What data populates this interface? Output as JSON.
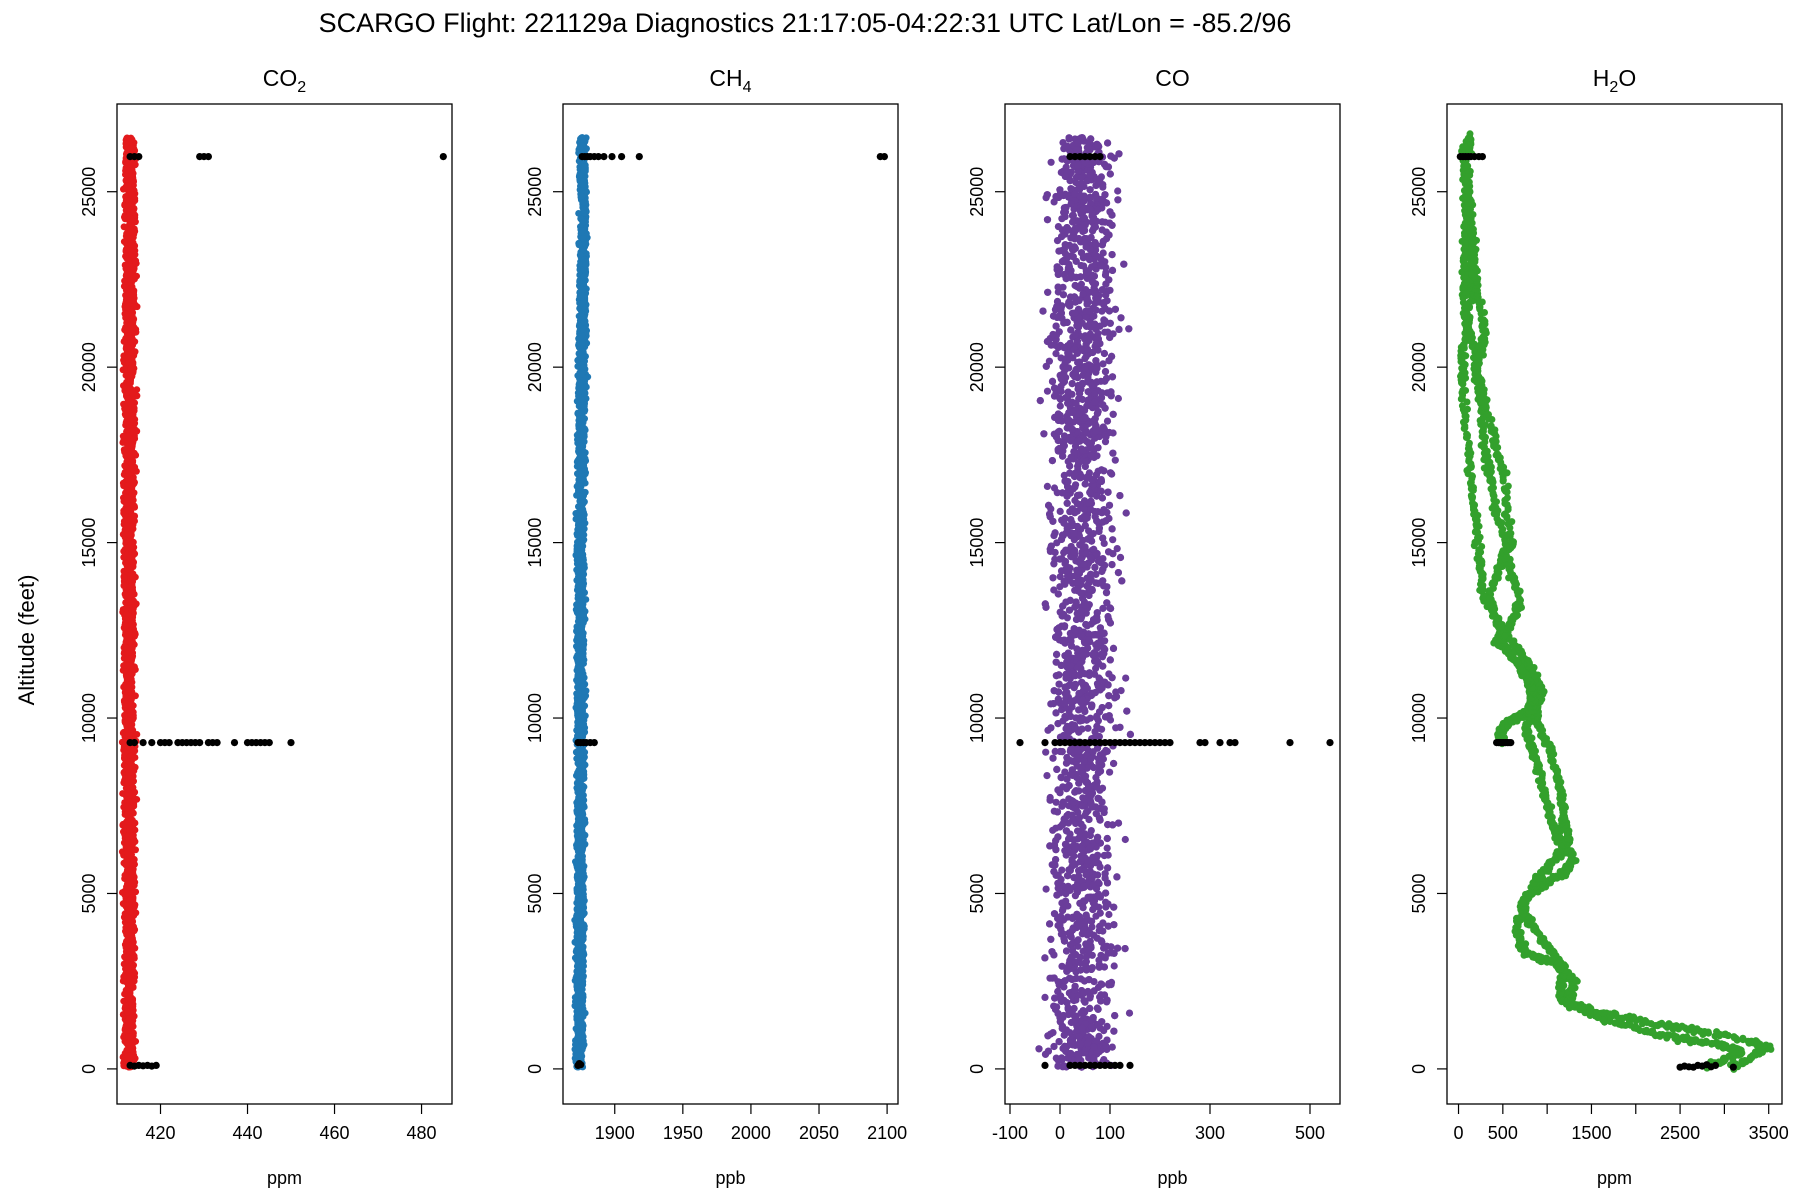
{
  "figure": {
    "title": "SCARGO Flight: 221129a  Diagnostics  21:17:05-04:22:31 UTC  Lat/Lon = -85.2/96",
    "ylabel": "Altitude (feet)",
    "flag_color": "#000000"
  },
  "chart_data": [
    {
      "type": "scatter",
      "title_main": "CO",
      "title_sub": "2",
      "xlabel": "ppm",
      "color": "#e31a1c",
      "xlim": [
        410,
        487
      ],
      "ylim": [
        -1000,
        27500
      ],
      "xticks": [
        420,
        440,
        460,
        480
      ],
      "xtick_labels": [
        "420",
        "440",
        "460",
        "480"
      ],
      "yticks": [
        0,
        5000,
        10000,
        15000,
        20000,
        25000
      ],
      "ytick_labels": [
        "0",
        "5000",
        "10000",
        "15000",
        "20000",
        "25000"
      ],
      "profile": {
        "center": [
          [
            0,
            412.8
          ],
          [
            9000,
            412.8
          ],
          [
            12000,
            412.7
          ],
          [
            20000,
            412.9
          ],
          [
            24000,
            413.1
          ],
          [
            26500,
            412.9
          ]
        ],
        "spread": 0.6
      },
      "flagged": [
        [
          413,
          100
        ],
        [
          414,
          80
        ],
        [
          415,
          100
        ],
        [
          416,
          90
        ],
        [
          417,
          100
        ],
        [
          418,
          80
        ],
        [
          419,
          100
        ],
        [
          413,
          9300
        ],
        [
          414,
          9300
        ],
        [
          416,
          9300
        ],
        [
          418,
          9300
        ],
        [
          420,
          9300
        ],
        [
          421,
          9300
        ],
        [
          422,
          9300
        ],
        [
          424,
          9300
        ],
        [
          425,
          9300
        ],
        [
          426,
          9300
        ],
        [
          427,
          9300
        ],
        [
          428,
          9300
        ],
        [
          429,
          9300
        ],
        [
          431,
          9300
        ],
        [
          432,
          9300
        ],
        [
          433,
          9300
        ],
        [
          437,
          9300
        ],
        [
          440,
          9300
        ],
        [
          441,
          9300
        ],
        [
          442,
          9300
        ],
        [
          443,
          9300
        ],
        [
          444,
          9300
        ],
        [
          445,
          9300
        ],
        [
          450,
          9300
        ],
        [
          413,
          26000
        ],
        [
          414,
          26000
        ],
        [
          415,
          26000
        ],
        [
          429,
          26000
        ],
        [
          430,
          26000
        ],
        [
          431,
          26000
        ],
        [
          485,
          26000
        ]
      ]
    },
    {
      "type": "scatter",
      "title_main": "CH",
      "title_sub": "4",
      "xlabel": "ppb",
      "color": "#1f78b4",
      "xlim": [
        1862,
        2108
      ],
      "ylim": [
        -1000,
        27500
      ],
      "xticks": [
        1900,
        1950,
        2000,
        2050,
        2100
      ],
      "xtick_labels": [
        "1900",
        "1950",
        "2000",
        "2050",
        "2100"
      ],
      "yticks": [
        0,
        5000,
        10000,
        15000,
        20000,
        25000
      ],
      "ytick_labels": [
        "0",
        "5000",
        "10000",
        "15000",
        "20000",
        "25000"
      ],
      "profile": {
        "center": [
          [
            0,
            1874
          ],
          [
            9000,
            1875
          ],
          [
            15000,
            1875
          ],
          [
            20000,
            1876
          ],
          [
            24000,
            1877
          ],
          [
            26500,
            1876
          ]
        ],
        "spread": 1.4
      },
      "flagged": [
        [
          1873,
          100
        ],
        [
          1874,
          150
        ],
        [
          1875,
          120
        ],
        [
          1873,
          9300
        ],
        [
          1875,
          9300
        ],
        [
          1877,
          9300
        ],
        [
          1879,
          9300
        ],
        [
          1882,
          9300
        ],
        [
          1885,
          9300
        ],
        [
          1876,
          26000
        ],
        [
          1878,
          26000
        ],
        [
          1880,
          26000
        ],
        [
          1882,
          26000
        ],
        [
          1885,
          26000
        ],
        [
          1888,
          26000
        ],
        [
          1892,
          26000
        ],
        [
          1898,
          26000
        ],
        [
          1905,
          26000
        ],
        [
          1918,
          26000
        ],
        [
          2095,
          26000
        ],
        [
          2098,
          26000
        ]
      ]
    },
    {
      "type": "scatter",
      "title_main": "CO",
      "title_sub": "",
      "xlabel": "ppb",
      "color": "#6a3d9a",
      "xlim": [
        -110,
        560
      ],
      "ylim": [
        -1000,
        27500
      ],
      "xticks": [
        -100,
        0,
        100,
        300,
        500
      ],
      "xtick_labels": [
        "-100",
        "0",
        "100",
        "300",
        "500"
      ],
      "yticks": [
        0,
        5000,
        10000,
        15000,
        20000,
        25000
      ],
      "ytick_labels": [
        "0",
        "5000",
        "10000",
        "15000",
        "20000",
        "25000"
      ],
      "profile": {
        "center": [
          [
            0,
            45
          ],
          [
            9000,
            45
          ],
          [
            14000,
            45
          ],
          [
            20000,
            45
          ],
          [
            26500,
            48
          ]
        ],
        "spread": 32
      },
      "flagged": [
        [
          -30,
          100
        ],
        [
          20,
          100
        ],
        [
          30,
          100
        ],
        [
          40,
          100
        ],
        [
          50,
          100
        ],
        [
          60,
          100
        ],
        [
          70,
          100
        ],
        [
          80,
          100
        ],
        [
          90,
          100
        ],
        [
          100,
          100
        ],
        [
          110,
          100
        ],
        [
          120,
          100
        ],
        [
          140,
          100
        ],
        [
          -80,
          9300
        ],
        [
          -30,
          9300
        ],
        [
          -10,
          9300
        ],
        [
          0,
          9300
        ],
        [
          10,
          9300
        ],
        [
          20,
          9300
        ],
        [
          30,
          9300
        ],
        [
          40,
          9300
        ],
        [
          50,
          9300
        ],
        [
          60,
          9300
        ],
        [
          70,
          9300
        ],
        [
          80,
          9300
        ],
        [
          90,
          9300
        ],
        [
          100,
          9300
        ],
        [
          110,
          9300
        ],
        [
          120,
          9300
        ],
        [
          130,
          9300
        ],
        [
          140,
          9300
        ],
        [
          150,
          9300
        ],
        [
          160,
          9300
        ],
        [
          170,
          9300
        ],
        [
          180,
          9300
        ],
        [
          190,
          9300
        ],
        [
          200,
          9300
        ],
        [
          210,
          9300
        ],
        [
          220,
          9300
        ],
        [
          280,
          9300
        ],
        [
          290,
          9300
        ],
        [
          320,
          9300
        ],
        [
          340,
          9300
        ],
        [
          350,
          9300
        ],
        [
          460,
          9300
        ],
        [
          540,
          9300
        ],
        [
          20,
          26000
        ],
        [
          30,
          26000
        ],
        [
          40,
          26000
        ],
        [
          50,
          26000
        ],
        [
          60,
          26000
        ],
        [
          70,
          26000
        ],
        [
          80,
          26000
        ]
      ]
    },
    {
      "type": "scatter",
      "title_main": "H",
      "title_sub": "2",
      "title_after": "O",
      "xlabel": "ppm",
      "color": "#33a02c",
      "xlim": [
        -130,
        3650
      ],
      "ylim": [
        -1000,
        27500
      ],
      "xticks": [
        0,
        500,
        1000,
        1500,
        2000,
        2500,
        3000,
        3500
      ],
      "xtick_labels": [
        "0",
        "500",
        "",
        "1500",
        "",
        "2500",
        "",
        "3500"
      ],
      "yticks": [
        0,
        5000,
        10000,
        15000,
        20000,
        25000
      ],
      "ytick_labels": [
        "0",
        "5000",
        "10000",
        "15000",
        "20000",
        "25000"
      ],
      "profiles": [
        [
          [
            3100,
            50
          ],
          [
            3500,
            600
          ],
          [
            3300,
            800
          ],
          [
            2700,
            1100
          ],
          [
            2200,
            1300
          ],
          [
            1600,
            1600
          ],
          [
            1200,
            1900
          ],
          [
            1150,
            2300
          ],
          [
            1200,
            2900
          ],
          [
            1000,
            3500
          ],
          [
            800,
            4200
          ],
          [
            700,
            4700
          ],
          [
            900,
            5200
          ],
          [
            1200,
            5600
          ],
          [
            1300,
            6000
          ],
          [
            1150,
            6500
          ],
          [
            1050,
            7000
          ],
          [
            950,
            8000
          ],
          [
            850,
            9000
          ],
          [
            760,
            9700
          ],
          [
            850,
            10200
          ],
          [
            950,
            10800
          ],
          [
            750,
            11700
          ],
          [
            500,
            12500
          ],
          [
            280,
            13500
          ],
          [
            240,
            14500
          ],
          [
            180,
            16000
          ],
          [
            110,
            17500
          ],
          [
            50,
            19500
          ],
          [
            60,
            20500
          ],
          [
            150,
            22000
          ],
          [
            120,
            23000
          ],
          [
            80,
            24500
          ],
          [
            60,
            26500
          ]
        ],
        [
          [
            2800,
            50
          ],
          [
            3200,
            500
          ],
          [
            2900,
            700
          ],
          [
            2400,
            900
          ],
          [
            1800,
            1300
          ],
          [
            1250,
            1800
          ],
          [
            1300,
            2500
          ],
          [
            1100,
            3000
          ],
          [
            750,
            3300
          ],
          [
            650,
            4000
          ],
          [
            760,
            4800
          ],
          [
            880,
            5400
          ],
          [
            1100,
            6000
          ],
          [
            1250,
            6500
          ],
          [
            1200,
            7000
          ],
          [
            1150,
            8000
          ],
          [
            1050,
            9000
          ],
          [
            900,
            9800
          ],
          [
            850,
            10400
          ],
          [
            830,
            10800
          ],
          [
            680,
            11600
          ],
          [
            420,
            12200
          ],
          [
            580,
            12600
          ],
          [
            700,
            13300
          ],
          [
            560,
            14500
          ],
          [
            420,
            16000
          ],
          [
            310,
            17500
          ],
          [
            250,
            19000
          ],
          [
            180,
            20500
          ],
          [
            70,
            21500
          ],
          [
            60,
            23000
          ],
          [
            90,
            24500
          ],
          [
            100,
            26000
          ],
          [
            120,
            26600
          ]
        ],
        [
          [
            500,
            9300
          ],
          [
            470,
            9500
          ],
          [
            520,
            9800
          ],
          [
            650,
            10000
          ],
          [
            800,
            10200
          ],
          [
            850,
            10600
          ],
          [
            800,
            11000
          ],
          [
            500,
            12200
          ],
          [
            350,
            13500
          ],
          [
            500,
            14500
          ],
          [
            600,
            15000
          ],
          [
            500,
            17000
          ],
          [
            350,
            18500
          ],
          [
            200,
            20000
          ],
          [
            300,
            21000
          ],
          [
            200,
            22500
          ],
          [
            150,
            24000
          ],
          [
            80,
            25500
          ]
        ]
      ],
      "flagged": [
        [
          2500,
          50
        ],
        [
          2550,
          80
        ],
        [
          2600,
          60
        ],
        [
          2650,
          50
        ],
        [
          2700,
          100
        ],
        [
          2750,
          80
        ],
        [
          2800,
          120
        ],
        [
          2850,
          60
        ],
        [
          2900,
          100
        ],
        [
          3100,
          50
        ],
        [
          430,
          9300
        ],
        [
          450,
          9300
        ],
        [
          470,
          9300
        ],
        [
          490,
          9300
        ],
        [
          510,
          9300
        ],
        [
          530,
          9300
        ],
        [
          550,
          9300
        ],
        [
          570,
          9300
        ],
        [
          590,
          9300
        ],
        [
          20,
          26000
        ],
        [
          50,
          26000
        ],
        [
          80,
          26000
        ],
        [
          110,
          26000
        ],
        [
          140,
          26000
        ],
        [
          180,
          26000
        ],
        [
          230,
          26000
        ],
        [
          270,
          26000
        ]
      ]
    }
  ]
}
